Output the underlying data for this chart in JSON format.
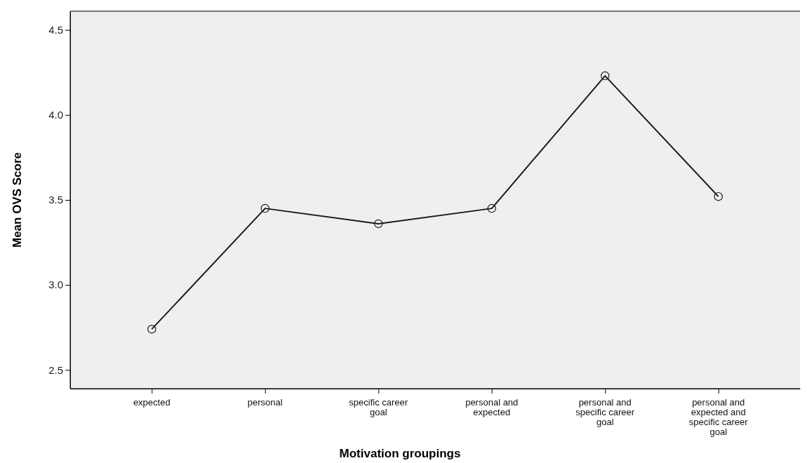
{
  "chart_data": {
    "type": "line",
    "xlabel": "Motivation groupings",
    "ylabel": "Mean OVS Score",
    "categories": [
      "expected",
      "personal",
      "specific career goal",
      "personal and expected",
      "personal and specific career goal",
      "personal and expected and specific career goal"
    ],
    "series": [
      {
        "color": "#1a1a1a",
        "values": [
          2.74,
          3.45,
          3.36,
          3.45,
          4.23,
          3.52
        ]
      }
    ],
    "ylim": [
      2.39,
      4.61
    ],
    "yticks": [
      {
        "value": 2.5,
        "label": "2.5"
      },
      {
        "value": 3,
        "label": "3.0"
      },
      {
        "value": 3.5,
        "label": "3.5"
      },
      {
        "value": 4,
        "label": "4.0"
      },
      {
        "value": 4.5,
        "label": "4.5"
      }
    ],
    "grid": false,
    "marker": "circle",
    "line_style": "solid"
  }
}
